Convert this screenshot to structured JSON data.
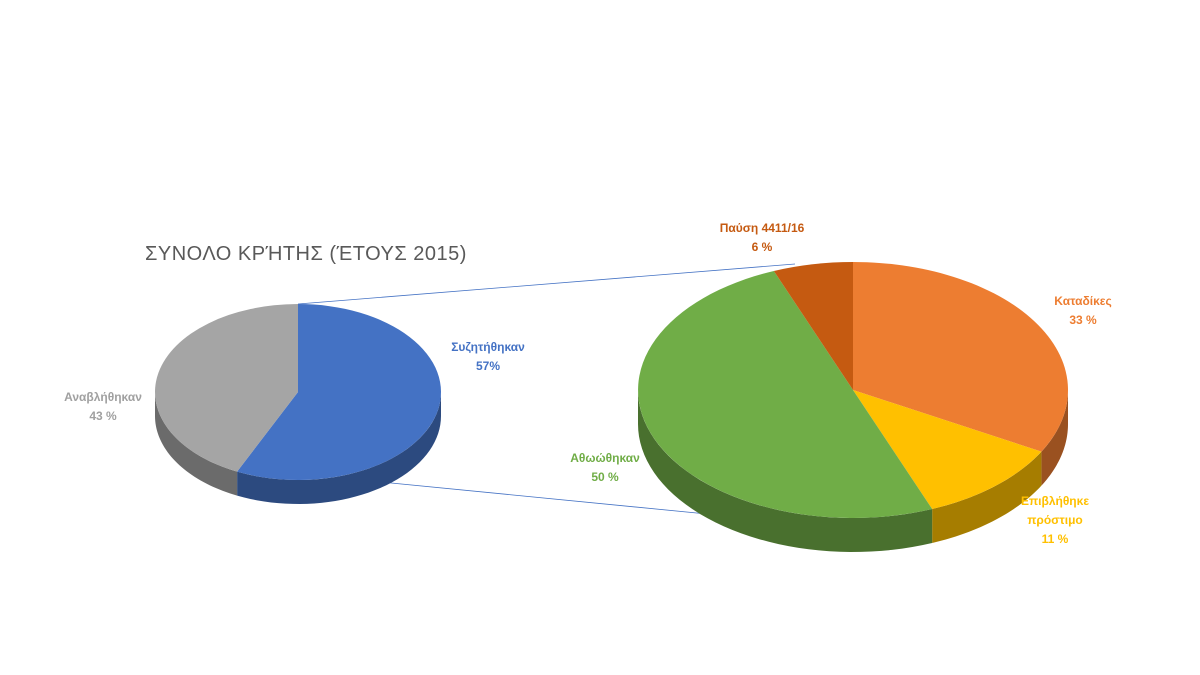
{
  "chart_data": [
    {
      "type": "pie",
      "title": "ΣΥΝΟΛΟ ΚΡΉΤΗΣ (ΈΤΟΥΣ 2015)",
      "categories": [
        "Συζητήθηκαν",
        "Αναβλήθηκαν"
      ],
      "values": [
        57,
        43
      ],
      "value_labels": [
        "57%",
        "43 %"
      ],
      "colors": [
        "#4472c4",
        "#a5a5a5"
      ]
    },
    {
      "type": "pie",
      "categories": [
        "Καταδίκες",
        "Επιβλήθηκε πρόστιμο",
        "Αθωώθηκαν",
        "Παύση 4411/16"
      ],
      "values": [
        33,
        11,
        50,
        6
      ],
      "value_labels": [
        "33 %",
        "11 %",
        "50 %",
        "6 %"
      ],
      "colors": [
        "#ed7d31",
        "#ffc000",
        "#70ad47",
        "#c55a11"
      ]
    }
  ]
}
